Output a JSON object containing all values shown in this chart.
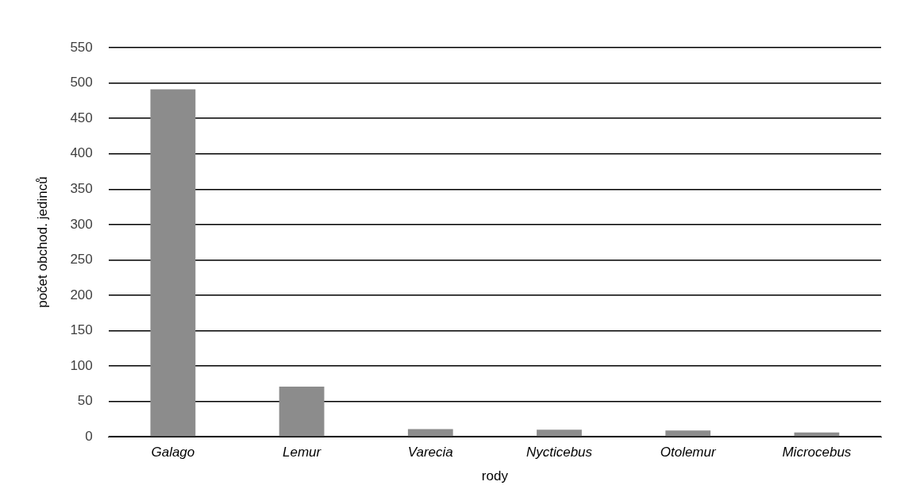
{
  "chart_data": {
    "type": "bar",
    "xlabel": "rody",
    "ylabel": "počet obchod. jedinců",
    "categories": [
      "Galago",
      "Lemur",
      "Varecia",
      "Nycticebus",
      "Otolemur",
      "Microcebus"
    ],
    "values": [
      491,
      71,
      11,
      10,
      9,
      6
    ],
    "color": "#8c8c8c",
    "ylim": [
      0,
      550
    ],
    "yticks": [
      0,
      50,
      100,
      150,
      200,
      250,
      300,
      350,
      400,
      450,
      500,
      550
    ],
    "grid": "y"
  }
}
